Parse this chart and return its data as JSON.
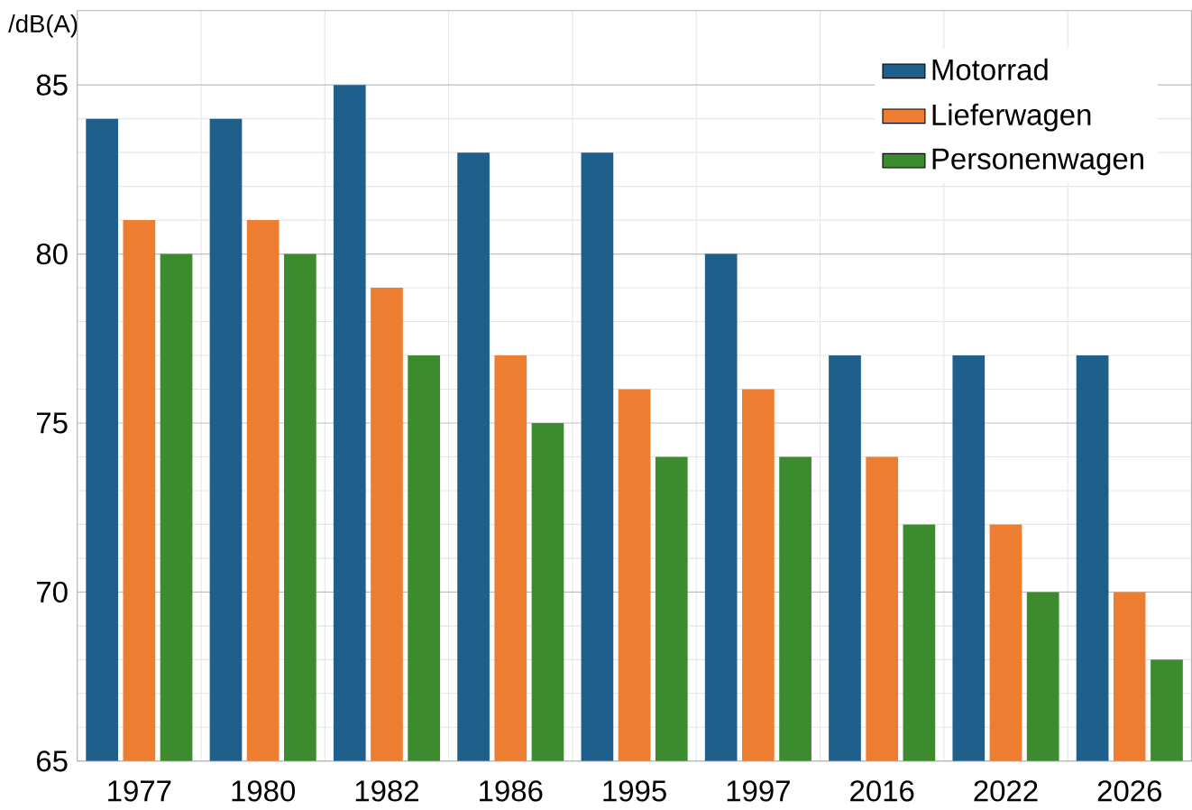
{
  "chart_data": {
    "type": "bar",
    "ylabel": "/dB(A)",
    "categories": [
      "1977",
      "1980",
      "1982",
      "1986",
      "1995",
      "1997",
      "2016",
      "2022",
      "2026"
    ],
    "series": [
      {
        "name": "Motorrad",
        "color": "#1f5f8b",
        "values": [
          84,
          84,
          85,
          83,
          83,
          80,
          77,
          77,
          77
        ]
      },
      {
        "name": "Lieferwagen",
        "color": "#ed7d31",
        "values": [
          81,
          81,
          79,
          77,
          76,
          76,
          74,
          72,
          70
        ]
      },
      {
        "name": "Personenwagen",
        "color": "#3d8b2f",
        "values": [
          80,
          80,
          77,
          75,
          74,
          74,
          72,
          70,
          68
        ]
      }
    ],
    "ylim": [
      65,
      87.2
    ],
    "yticks": [
      65,
      70,
      75,
      80,
      85
    ],
    "grid": true,
    "legend": "top right"
  }
}
